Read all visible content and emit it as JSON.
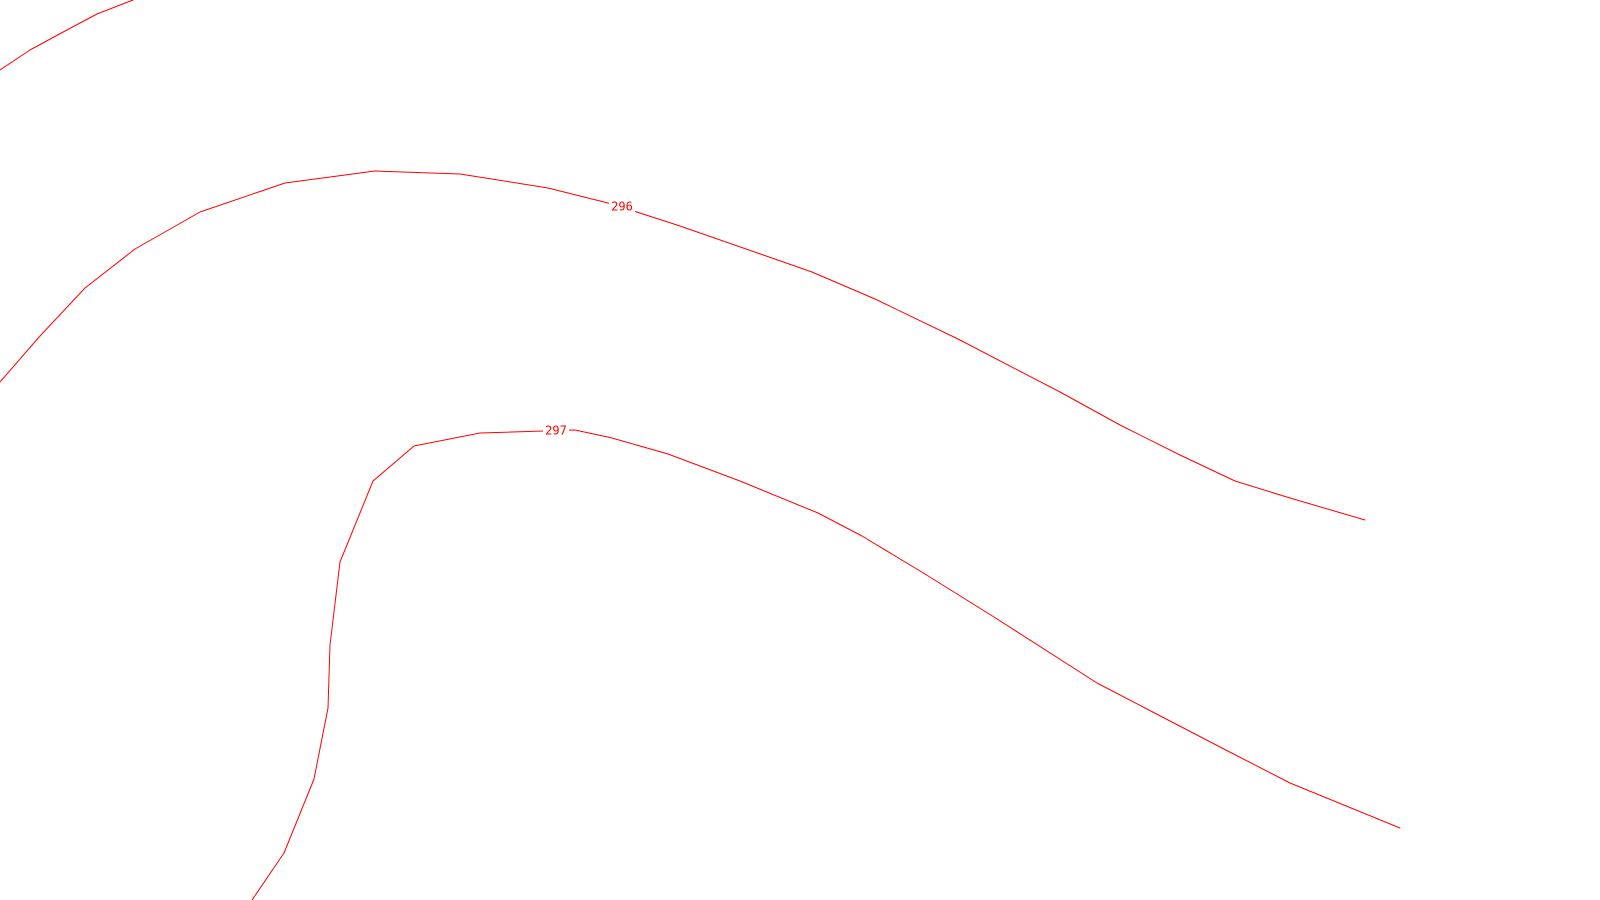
{
  "map": {
    "line_color": "#ff0000",
    "background_color": "#ffffff",
    "contours": [
      {
        "id": "contour-upper-unlabeled",
        "elevation_label": ""
      },
      {
        "id": "contour-296",
        "elevation_label": "296"
      },
      {
        "id": "contour-297",
        "elevation_label": "297"
      }
    ]
  }
}
